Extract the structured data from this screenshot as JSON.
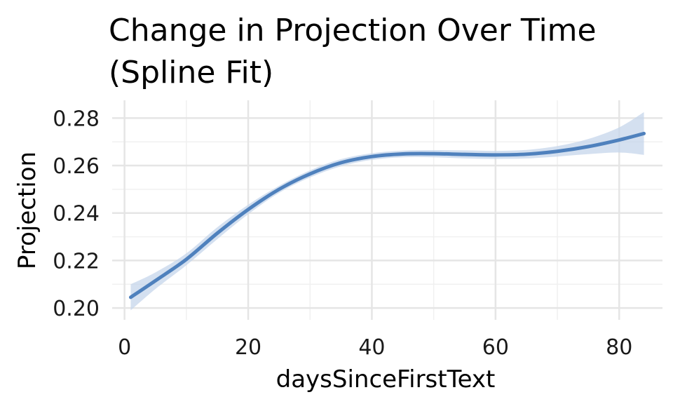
{
  "chart_data": {
    "type": "line",
    "title": "Change in Projection Over Time",
    "subtitle": "(Spline Fit)",
    "xlabel": "daysSinceFirstText",
    "ylabel": "Projection",
    "xlim": [
      -2,
      87
    ],
    "ylim": [
      0.195,
      0.2875
    ],
    "xticks": [
      0,
      20,
      40,
      60,
      80
    ],
    "xtick_labels": [
      "0",
      "20",
      "40",
      "60",
      "80"
    ],
    "yticks": [
      0.2,
      0.22,
      0.24,
      0.26,
      0.28
    ],
    "ytick_labels": [
      "0.20",
      "0.22",
      "0.24",
      "0.26",
      "0.28"
    ],
    "grid": true,
    "legend": "none",
    "series": [
      {
        "x": [
          1,
          5,
          10,
          15,
          20,
          25,
          30,
          35,
          40,
          45,
          50,
          55,
          60,
          65,
          70,
          75,
          80,
          84
        ],
        "y": [
          0.2045,
          0.2115,
          0.2205,
          0.2315,
          0.2415,
          0.25,
          0.2565,
          0.2612,
          0.2638,
          0.2649,
          0.265,
          0.2647,
          0.2645,
          0.2648,
          0.266,
          0.268,
          0.2708,
          0.2735
        ],
        "ci_lower": [
          0.199,
          0.208,
          0.218,
          0.229,
          0.2395,
          0.2485,
          0.255,
          0.2597,
          0.2624,
          0.2635,
          0.2635,
          0.263,
          0.2628,
          0.263,
          0.2638,
          0.2648,
          0.2655,
          0.2645
        ],
        "ci_upper": [
          0.21,
          0.215,
          0.223,
          0.234,
          0.2435,
          0.2515,
          0.258,
          0.2627,
          0.2652,
          0.2663,
          0.2665,
          0.2664,
          0.2662,
          0.2666,
          0.2682,
          0.2712,
          0.2761,
          0.2825
        ]
      }
    ],
    "colors": {
      "line": "#4f81bd",
      "ribbon": "#c6d6eb",
      "grid_major": "#e5e5e5",
      "grid_minor": "#f0f0f0"
    }
  }
}
